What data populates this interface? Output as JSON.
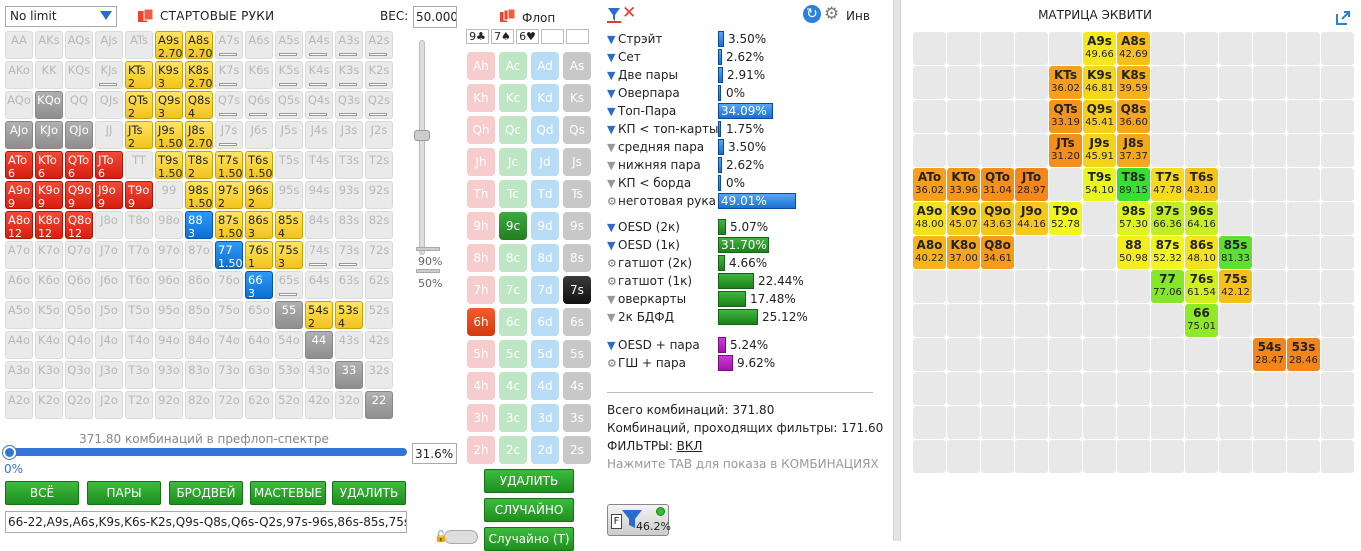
{
  "limit_select": {
    "value": "No limit"
  },
  "start_hands": {
    "title": "СТАРТОВЫЕ РУКИ",
    "weight_label": "ВЕС:",
    "weight_value": "50.000"
  },
  "slider": {
    "pct90": "90%",
    "pct50": "50%"
  },
  "grid": [
    [
      {
        "t": "AA",
        "s": "e"
      },
      {
        "t": "AKs",
        "s": "e"
      },
      {
        "t": "AQs",
        "s": "e"
      },
      {
        "t": "AJs",
        "s": "e"
      },
      {
        "t": "ATs",
        "s": "e"
      },
      {
        "t": "A9s",
        "s": "y",
        "w": "2.70"
      },
      {
        "t": "A8s",
        "s": "y",
        "w": "2.70"
      },
      {
        "t": "A7s",
        "s": "e",
        "b": true
      },
      {
        "t": "A6s",
        "s": "e"
      },
      {
        "t": "A5s",
        "s": "e",
        "b": true
      },
      {
        "t": "A4s",
        "s": "e",
        "b": true
      },
      {
        "t": "A3s",
        "s": "e",
        "b": true
      },
      {
        "t": "A2s",
        "s": "e",
        "b": true
      }
    ],
    [
      {
        "t": "AKo",
        "s": "e"
      },
      {
        "t": "KK",
        "s": "e"
      },
      {
        "t": "KQs",
        "s": "e"
      },
      {
        "t": "KJs",
        "s": "e",
        "b": true
      },
      {
        "t": "KTs",
        "s": "y",
        "w": "2"
      },
      {
        "t": "K9s",
        "s": "y",
        "w": "3"
      },
      {
        "t": "K8s",
        "s": "y",
        "w": "2.70"
      },
      {
        "t": "K7s",
        "s": "e",
        "b": true
      },
      {
        "t": "K6s",
        "s": "e"
      },
      {
        "t": "K5s",
        "s": "e",
        "b": true
      },
      {
        "t": "K4s",
        "s": "e",
        "b": true
      },
      {
        "t": "K3s",
        "s": "e",
        "b": true
      },
      {
        "t": "K2s",
        "s": "e",
        "b": true
      }
    ],
    [
      {
        "t": "AQo",
        "s": "e"
      },
      {
        "t": "KQo",
        "s": "g"
      },
      {
        "t": "QQ",
        "s": "e"
      },
      {
        "t": "QJs",
        "s": "e"
      },
      {
        "t": "QTs",
        "s": "y",
        "w": "2"
      },
      {
        "t": "Q9s",
        "s": "y",
        "w": "3"
      },
      {
        "t": "Q8s",
        "s": "y",
        "w": "4"
      },
      {
        "t": "Q7s",
        "s": "e",
        "b": true
      },
      {
        "t": "Q6s",
        "s": "e",
        "b": true
      },
      {
        "t": "Q5s",
        "s": "e",
        "b": true
      },
      {
        "t": "Q4s",
        "s": "e",
        "b": true
      },
      {
        "t": "Q3s",
        "s": "e",
        "b": true
      },
      {
        "t": "Q2s",
        "s": "e",
        "b": true
      }
    ],
    [
      {
        "t": "AJo",
        "s": "g"
      },
      {
        "t": "KJo",
        "s": "g"
      },
      {
        "t": "QJo",
        "s": "g"
      },
      {
        "t": "JJ",
        "s": "e"
      },
      {
        "t": "JTs",
        "s": "y",
        "w": "2"
      },
      {
        "t": "J9s",
        "s": "y",
        "w": "1.50"
      },
      {
        "t": "J8s",
        "s": "y",
        "w": "2.70"
      },
      {
        "t": "J7s",
        "s": "e",
        "b": true
      },
      {
        "t": "J6s",
        "s": "e"
      },
      {
        "t": "J5s",
        "s": "e"
      },
      {
        "t": "J4s",
        "s": "e"
      },
      {
        "t": "J3s",
        "s": "e"
      },
      {
        "t": "J2s",
        "s": "e"
      }
    ],
    [
      {
        "t": "ATo",
        "s": "r",
        "w": "6"
      },
      {
        "t": "KTo",
        "s": "r",
        "w": "6"
      },
      {
        "t": "QTo",
        "s": "r",
        "w": "6"
      },
      {
        "t": "JTo",
        "s": "r",
        "w": "6"
      },
      {
        "t": "TT",
        "s": "e"
      },
      {
        "t": "T9s",
        "s": "y",
        "w": "1.50"
      },
      {
        "t": "T8s",
        "s": "y",
        "w": "2"
      },
      {
        "t": "T7s",
        "s": "y",
        "w": "1.50"
      },
      {
        "t": "T6s",
        "s": "y",
        "w": "1.50"
      },
      {
        "t": "T5s",
        "s": "e"
      },
      {
        "t": "T4s",
        "s": "e"
      },
      {
        "t": "T3s",
        "s": "e"
      },
      {
        "t": "T2s",
        "s": "e"
      }
    ],
    [
      {
        "t": "A9o",
        "s": "r",
        "w": "9"
      },
      {
        "t": "K9o",
        "s": "r",
        "w": "9"
      },
      {
        "t": "Q9o",
        "s": "r",
        "w": "9"
      },
      {
        "t": "J9o",
        "s": "r",
        "w": "9"
      },
      {
        "t": "T9o",
        "s": "r",
        "w": "9"
      },
      {
        "t": "99",
        "s": "e"
      },
      {
        "t": "98s",
        "s": "y",
        "w": "1.50"
      },
      {
        "t": "97s",
        "s": "y",
        "w": "2"
      },
      {
        "t": "96s",
        "s": "y",
        "w": "2"
      },
      {
        "t": "95s",
        "s": "e"
      },
      {
        "t": "94s",
        "s": "e"
      },
      {
        "t": "93s",
        "s": "e"
      },
      {
        "t": "92s",
        "s": "e"
      }
    ],
    [
      {
        "t": "A8o",
        "s": "r",
        "w": "12"
      },
      {
        "t": "K8o",
        "s": "r",
        "w": "12"
      },
      {
        "t": "Q8o",
        "s": "r",
        "w": "12"
      },
      {
        "t": "J8o",
        "s": "e"
      },
      {
        "t": "T8o",
        "s": "e"
      },
      {
        "t": "98o",
        "s": "e"
      },
      {
        "t": "88",
        "s": "b",
        "w": "3"
      },
      {
        "t": "87s",
        "s": "y",
        "w": "1.50"
      },
      {
        "t": "86s",
        "s": "y",
        "w": "3"
      },
      {
        "t": "85s",
        "s": "y",
        "w": "4"
      },
      {
        "t": "84s",
        "s": "e"
      },
      {
        "t": "83s",
        "s": "e"
      },
      {
        "t": "82s",
        "s": "e"
      }
    ],
    [
      {
        "t": "A7o",
        "s": "e"
      },
      {
        "t": "K7o",
        "s": "e"
      },
      {
        "t": "Q7o",
        "s": "e"
      },
      {
        "t": "J7o",
        "s": "e"
      },
      {
        "t": "T7o",
        "s": "e"
      },
      {
        "t": "97o",
        "s": "e"
      },
      {
        "t": "87o",
        "s": "e"
      },
      {
        "t": "77",
        "s": "b",
        "w": "1.50"
      },
      {
        "t": "76s",
        "s": "y",
        "w": "1"
      },
      {
        "t": "75s",
        "s": "y",
        "w": "3"
      },
      {
        "t": "74s",
        "s": "e",
        "b": true
      },
      {
        "t": "73s",
        "s": "e",
        "b": true
      },
      {
        "t": "72s",
        "s": "e"
      }
    ],
    [
      {
        "t": "A6o",
        "s": "e"
      },
      {
        "t": "K6o",
        "s": "e"
      },
      {
        "t": "Q6o",
        "s": "e"
      },
      {
        "t": "J6o",
        "s": "e"
      },
      {
        "t": "T6o",
        "s": "e"
      },
      {
        "t": "96o",
        "s": "e"
      },
      {
        "t": "86o",
        "s": "e"
      },
      {
        "t": "76o",
        "s": "e"
      },
      {
        "t": "66",
        "s": "b",
        "w": "3"
      },
      {
        "t": "65s",
        "s": "e",
        "b": true
      },
      {
        "t": "64s",
        "s": "e"
      },
      {
        "t": "63s",
        "s": "e"
      },
      {
        "t": "62s",
        "s": "e"
      }
    ],
    [
      {
        "t": "A5o",
        "s": "e"
      },
      {
        "t": "K5o",
        "s": "e"
      },
      {
        "t": "Q5o",
        "s": "e"
      },
      {
        "t": "J5o",
        "s": "e"
      },
      {
        "t": "T5o",
        "s": "e"
      },
      {
        "t": "95o",
        "s": "e"
      },
      {
        "t": "85o",
        "s": "e"
      },
      {
        "t": "75o",
        "s": "e"
      },
      {
        "t": "65o",
        "s": "e"
      },
      {
        "t": "55",
        "s": "g"
      },
      {
        "t": "54s",
        "s": "y",
        "w": "2"
      },
      {
        "t": "53s",
        "s": "y",
        "w": "4"
      },
      {
        "t": "52s",
        "s": "e"
      }
    ],
    [
      {
        "t": "A4o",
        "s": "e"
      },
      {
        "t": "K4o",
        "s": "e"
      },
      {
        "t": "Q4o",
        "s": "e"
      },
      {
        "t": "J4o",
        "s": "e"
      },
      {
        "t": "T4o",
        "s": "e"
      },
      {
        "t": "94o",
        "s": "e"
      },
      {
        "t": "84o",
        "s": "e"
      },
      {
        "t": "74o",
        "s": "e"
      },
      {
        "t": "64o",
        "s": "e"
      },
      {
        "t": "54o",
        "s": "e"
      },
      {
        "t": "44",
        "s": "g"
      },
      {
        "t": "43s",
        "s": "e"
      },
      {
        "t": "42s",
        "s": "e"
      }
    ],
    [
      {
        "t": "A3o",
        "s": "e"
      },
      {
        "t": "K3o",
        "s": "e"
      },
      {
        "t": "Q3o",
        "s": "e"
      },
      {
        "t": "J3o",
        "s": "e"
      },
      {
        "t": "T3o",
        "s": "e"
      },
      {
        "t": "93o",
        "s": "e"
      },
      {
        "t": "83o",
        "s": "e"
      },
      {
        "t": "73o",
        "s": "e"
      },
      {
        "t": "63o",
        "s": "e"
      },
      {
        "t": "53o",
        "s": "e"
      },
      {
        "t": "43o",
        "s": "e"
      },
      {
        "t": "33",
        "s": "g"
      },
      {
        "t": "32s",
        "s": "e"
      }
    ],
    [
      {
        "t": "A2o",
        "s": "e"
      },
      {
        "t": "K2o",
        "s": "e"
      },
      {
        "t": "Q2o",
        "s": "e"
      },
      {
        "t": "J2o",
        "s": "e"
      },
      {
        "t": "T2o",
        "s": "e"
      },
      {
        "t": "92o",
        "s": "e"
      },
      {
        "t": "82o",
        "s": "e"
      },
      {
        "t": "72o",
        "s": "e"
      },
      {
        "t": "62o",
        "s": "e"
      },
      {
        "t": "52o",
        "s": "e"
      },
      {
        "t": "42o",
        "s": "e"
      },
      {
        "t": "32o",
        "s": "e"
      },
      {
        "t": "22",
        "s": "g"
      }
    ]
  ],
  "range_slider": {
    "caption": "371.80 комбинаций в префлоп-спектре",
    "pct_value": "0%",
    "box_value": "31.6%",
    "fill": 0.0
  },
  "buttons": {
    "all": "ВСЁ",
    "pairs": "ПАРЫ",
    "broadway": "БРОДВЕЙ",
    "suited": "МАСТЕВЫЕ",
    "delete": "УДАЛИТЬ"
  },
  "range_text": "66-22,A9s,A6s,K9s,K6s-K2s,Q9s-Q8s,Q6s-Q2s,97s-96s,86s-85s,75s",
  "flop": {
    "title": "Флоп",
    "slots": [
      "9♣",
      "7♠",
      "6♥",
      "",
      ""
    ],
    "ranks": [
      "A",
      "K",
      "Q",
      "J",
      "T",
      "9",
      "8",
      "7",
      "6",
      "5",
      "4",
      "3",
      "2"
    ],
    "selected": [
      "9c",
      "7s",
      "6h"
    ],
    "delete_btn": "УДАЛИТЬ",
    "random_btn": "СЛУЧАЙНО",
    "random_t_btn": "Случайно (T)"
  },
  "stats_header": {
    "inv_label": "Инв"
  },
  "stats": [
    {
      "label": "Стрэйт",
      "value": "3.50%",
      "color": "blue",
      "frac": 0.035,
      "icon": "f"
    },
    {
      "label": "Сет",
      "value": "2.62%",
      "color": "blue",
      "frac": 0.0262,
      "icon": "f"
    },
    {
      "label": "Две пары",
      "value": "2.91%",
      "color": "blue",
      "frac": 0.0291,
      "icon": "f"
    },
    {
      "label": "Оверпара",
      "value": "0%",
      "color": "blue",
      "frac": 0,
      "icon": "f"
    },
    {
      "label": "Топ-Пара",
      "value": "34.09%",
      "color": "blue",
      "frac": 0.3409,
      "icon": "f"
    },
    {
      "label": "КП < топ-карты",
      "value": "1.75%",
      "color": "blue",
      "frac": 0.0175,
      "icon": "f"
    },
    {
      "label": "средняя пара",
      "value": "3.50%",
      "color": "blue",
      "frac": 0.035,
      "icon": "g"
    },
    {
      "label": "нижняя пара",
      "value": "2.62%",
      "color": "blue",
      "frac": 0.0262,
      "icon": "g"
    },
    {
      "label": "КП < борда",
      "value": "0%",
      "color": "blue",
      "frac": 0,
      "icon": "g"
    },
    {
      "label": "неготовая рука",
      "value": "49.01%",
      "color": "blue",
      "frac": 0.4901,
      "icon": "gear"
    },
    {
      "label": "OESD (2к)",
      "value": "5.07%",
      "color": "green",
      "frac": 0.0507,
      "icon": "f"
    },
    {
      "label": "OESD (1к)",
      "value": "31.70%",
      "color": "green",
      "frac": 0.317,
      "icon": "f"
    },
    {
      "label": "гатшот (2к)",
      "value": "4.66%",
      "color": "green",
      "frac": 0.0466,
      "icon": "gear"
    },
    {
      "label": "гатшот (1к)",
      "value": "22.44%",
      "color": "green",
      "frac": 0.2244,
      "icon": "gear"
    },
    {
      "label": "оверкарты",
      "value": "17.48%",
      "color": "green",
      "frac": 0.1748,
      "icon": "g"
    },
    {
      "label": "2к БДФД",
      "value": "25.12%",
      "color": "green",
      "frac": 0.2512,
      "icon": "g"
    },
    {
      "label": "OESD + пара",
      "value": "5.24%",
      "color": "purple",
      "frac": 0.0524,
      "icon": "f"
    },
    {
      "label": "ГШ + пара",
      "value": "9.62%",
      "color": "purple",
      "frac": 0.0962,
      "icon": "gear"
    }
  ],
  "info": {
    "total": "Всего комбинаций: 371.80",
    "passed": "Комбинаций, проходящих фильтры: 171.60",
    "filters_label": "ФИЛЬТРЫ:",
    "filters_value": "ВКЛ",
    "hint": "Нажмите TAB для показа в КОМБИНАЦИЯХ",
    "filter_pct": "46.2%"
  },
  "matrix": {
    "title": "МАТРИЦА ЭКВИТИ",
    "cells": [
      {
        "r": 0,
        "c": 5,
        "h": "A9s",
        "v": "49.66",
        "col": "#f3e91e"
      },
      {
        "r": 0,
        "c": 6,
        "h": "A8s",
        "v": "42.69",
        "col": "#f5c01a"
      },
      {
        "r": 1,
        "c": 4,
        "h": "KTs",
        "v": "36.02",
        "col": "#f5a01a"
      },
      {
        "r": 1,
        "c": 5,
        "h": "K9s",
        "v": "46.81",
        "col": "#f4d61c"
      },
      {
        "r": 1,
        "c": 6,
        "h": "K8s",
        "v": "39.59",
        "col": "#f5b01a"
      },
      {
        "r": 2,
        "c": 4,
        "h": "QTs",
        "v": "33.19",
        "col": "#f4951a"
      },
      {
        "r": 2,
        "c": 5,
        "h": "Q9s",
        "v": "45.41",
        "col": "#f4d01c"
      },
      {
        "r": 2,
        "c": 6,
        "h": "Q8s",
        "v": "36.60",
        "col": "#f5a61a"
      },
      {
        "r": 3,
        "c": 4,
        "h": "JTs",
        "v": "31.20",
        "col": "#f4901a"
      },
      {
        "r": 3,
        "c": 5,
        "h": "J9s",
        "v": "45.91",
        "col": "#f4d31c"
      },
      {
        "r": 3,
        "c": 6,
        "h": "J8s",
        "v": "37.37",
        "col": "#f5a81a"
      },
      {
        "r": 4,
        "c": 0,
        "h": "ATo",
        "v": "36.02",
        "col": "#f5a01a"
      },
      {
        "r": 4,
        "c": 1,
        "h": "KTo",
        "v": "33.96",
        "col": "#f4981a"
      },
      {
        "r": 4,
        "c": 2,
        "h": "QTo",
        "v": "31.04",
        "col": "#f4901a"
      },
      {
        "r": 4,
        "c": 3,
        "h": "JTo",
        "v": "28.97",
        "col": "#f3871a"
      },
      {
        "r": 4,
        "c": 5,
        "h": "T9s",
        "v": "54.10",
        "col": "#e9f51e"
      },
      {
        "r": 4,
        "c": 6,
        "h": "T8s",
        "v": "89.15",
        "col": "#37e030"
      },
      {
        "r": 4,
        "c": 7,
        "h": "T7s",
        "v": "47.78",
        "col": "#f4dc1c"
      },
      {
        "r": 4,
        "c": 8,
        "h": "T6s",
        "v": "43.10",
        "col": "#f5c41a"
      },
      {
        "r": 5,
        "c": 0,
        "h": "A9o",
        "v": "48.00",
        "col": "#f3e21e"
      },
      {
        "r": 5,
        "c": 1,
        "h": "K9o",
        "v": "45.07",
        "col": "#f4ce1c"
      },
      {
        "r": 5,
        "c": 2,
        "h": "Q9o",
        "v": "43.63",
        "col": "#f5c61a"
      },
      {
        "r": 5,
        "c": 3,
        "h": "J9o",
        "v": "44.16",
        "col": "#f5c81a"
      },
      {
        "r": 5,
        "c": 4,
        "h": "T9o",
        "v": "52.78",
        "col": "#f1f51e"
      },
      {
        "r": 5,
        "c": 6,
        "h": "98s",
        "v": "57.30",
        "col": "#def51e"
      },
      {
        "r": 5,
        "c": 7,
        "h": "97s",
        "v": "66.36",
        "col": "#c1ee22"
      },
      {
        "r": 5,
        "c": 8,
        "h": "96s",
        "v": "64.16",
        "col": "#c9f022"
      },
      {
        "r": 6,
        "c": 0,
        "h": "A8o",
        "v": "40.22",
        "col": "#f5b41a"
      },
      {
        "r": 6,
        "c": 1,
        "h": "K8o",
        "v": "37.00",
        "col": "#f5a71a"
      },
      {
        "r": 6,
        "c": 2,
        "h": "Q8o",
        "v": "34.61",
        "col": "#f49b1a"
      },
      {
        "r": 6,
        "c": 6,
        "h": "88",
        "v": "50.98",
        "col": "#f5ee1e"
      },
      {
        "r": 6,
        "c": 7,
        "h": "87s",
        "v": "52.32",
        "col": "#f1f51e"
      },
      {
        "r": 6,
        "c": 8,
        "h": "86s",
        "v": "48.10",
        "col": "#f3e21e"
      },
      {
        "r": 6,
        "c": 9,
        "h": "85s",
        "v": "81.33",
        "col": "#5ee030"
      },
      {
        "r": 7,
        "c": 7,
        "h": "77",
        "v": "77.06",
        "col": "#86e62a"
      },
      {
        "r": 7,
        "c": 8,
        "h": "76s",
        "v": "61.54",
        "col": "#d2f020"
      },
      {
        "r": 7,
        "c": 9,
        "h": "75s",
        "v": "42.12",
        "col": "#f5c01a"
      },
      {
        "r": 8,
        "c": 8,
        "h": "66",
        "v": "75.01",
        "col": "#90e82a"
      },
      {
        "r": 9,
        "c": 10,
        "h": "54s",
        "v": "28.47",
        "col": "#f3861a"
      },
      {
        "r": 9,
        "c": 11,
        "h": "53s",
        "v": "28.46",
        "col": "#f3861a"
      }
    ]
  },
  "colors": {
    "accent_blue": "#2a6bd0",
    "green_button": "#2aa12a",
    "hand_red": "#e0321f",
    "hand_yellow": "#f4d033",
    "hand_blue": "#1a82e4"
  }
}
